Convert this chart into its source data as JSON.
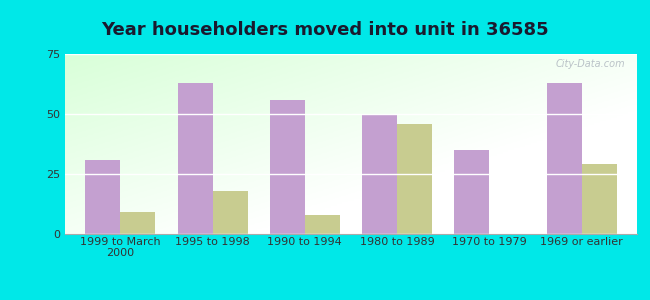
{
  "title": "Year householders moved into unit in 36585",
  "categories": [
    "1999 to March\n2000",
    "1995 to 1998",
    "1990 to 1994",
    "1980 to 1989",
    "1970 to 1979",
    "1969 or earlier"
  ],
  "white_values": [
    31,
    63,
    56,
    50,
    35,
    63
  ],
  "black_values": [
    9,
    18,
    8,
    46,
    null,
    29
  ],
  "white_color": "#c4a0d0",
  "black_color": "#c8cc90",
  "bg_outer": "#00e8e8",
  "ylim": [
    0,
    75
  ],
  "yticks": [
    0,
    25,
    50,
    75
  ],
  "title_fontsize": 13,
  "tick_fontsize": 8,
  "legend_fontsize": 9,
  "bar_width": 0.38,
  "watermark": "City-Data.com"
}
